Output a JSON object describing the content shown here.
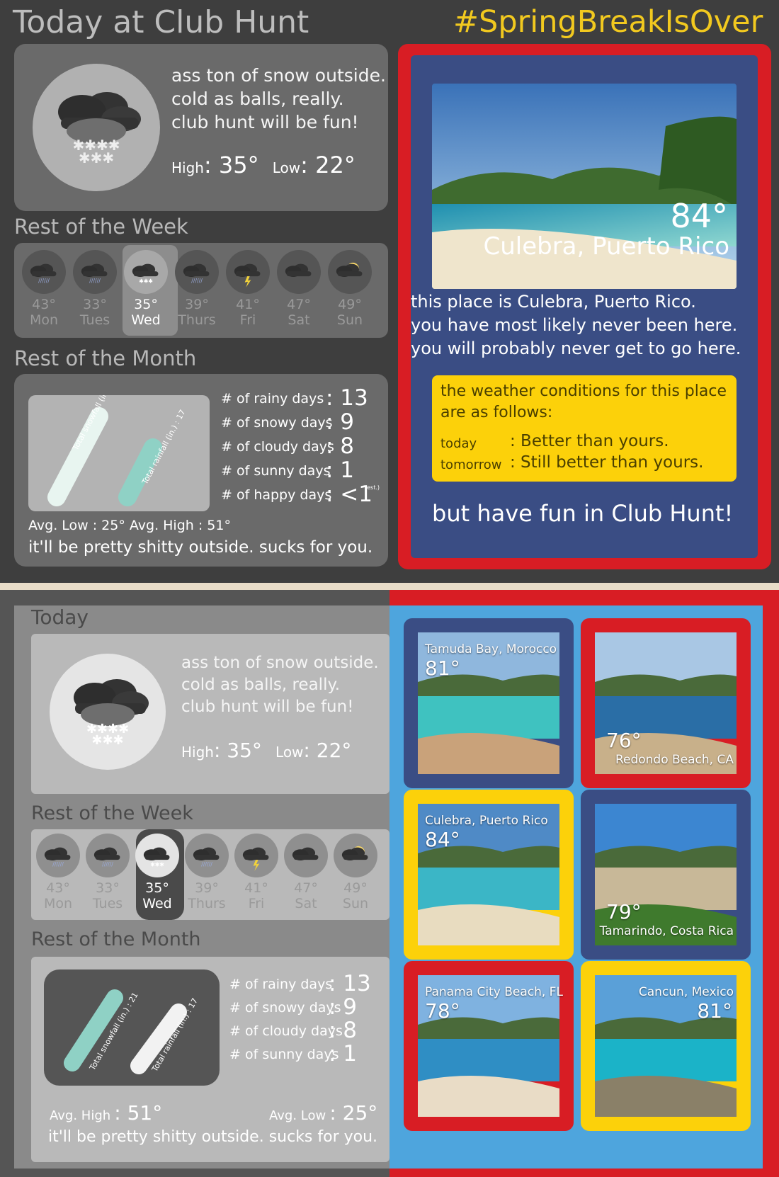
{
  "top": {
    "title": "Today at Club Hunt",
    "hashtag": "#SpringBreakIsOver",
    "today": {
      "lines": [
        "ass ton of snow outside.",
        "cold as balls, really.",
        "club hunt will be fun!"
      ],
      "high_label": "High",
      "high_value": ": 35°",
      "low_label": "Low",
      "low_value": ": 22°"
    },
    "week_heading": "Rest of the Week",
    "month_heading": "Rest of the Month",
    "month_stats": [
      {
        "label": "# of rainy days",
        "value": ": 13"
      },
      {
        "label": "# of snowy days",
        "value": ": 9"
      },
      {
        "label": "# of cloudy days",
        "value": ": 8"
      },
      {
        "label": "# of sunny days",
        "value": ": 1"
      },
      {
        "label": "# of happy days",
        "value": ": <1",
        "note": "(est.)"
      }
    ],
    "snowfall_label": "Total snowfall (in.) : 21",
    "rainfall_label": "Total rainfall (in.) : 17",
    "avg_line": "Avg. Low : 25°  Avg. High : 51°",
    "summary": "it'll be pretty shitty outside. sucks for you.",
    "feature": {
      "temp": "84°",
      "place": "Culebra, Puerto Rico",
      "desc": [
        "this place is Culebra, Puerto Rico.",
        "you have most likely never been here.",
        "you will probably never get to go here."
      ],
      "box_intro": [
        "the weather conditions for this place",
        "are as follows:"
      ],
      "today_label": "today",
      "today_value": ": Better than yours.",
      "tomorrow_label": "tomorrow",
      "tomorrow_value": ": Still better than yours.",
      "footer": "but have fun in Club Hunt!"
    }
  },
  "week": [
    {
      "temp": "43°",
      "day": "Mon",
      "icon": "cloud-rain-icon"
    },
    {
      "temp": "33°",
      "day": "Tues",
      "icon": "cloud-rain-icon"
    },
    {
      "temp": "35°",
      "day": "Wed",
      "icon": "cloud-snow-icon",
      "active": true
    },
    {
      "temp": "39°",
      "day": "Thurs",
      "icon": "cloud-rain-icon"
    },
    {
      "temp": "41°",
      "day": "Fri",
      "icon": "cloud-lightning-icon"
    },
    {
      "temp": "47°",
      "day": "Sat",
      "icon": "cloud-icon"
    },
    {
      "temp": "49°",
      "day": "Sun",
      "icon": "partly-sunny-icon"
    }
  ],
  "bottom": {
    "today_heading": "Today",
    "today": {
      "lines": [
        "ass ton of snow outside.",
        "cold as balls, really.",
        "club hunt will be fun!"
      ],
      "high_label": "High",
      "high_value": ": 35°",
      "low_label": "Low",
      "low_value": ": 22°"
    },
    "week_heading": "Rest of the Week",
    "month_heading": "Rest of the Month",
    "month_stats": [
      {
        "label": "# of rainy days",
        "value": ": 13"
      },
      {
        "label": "# of snowy days",
        "value": ": 9"
      },
      {
        "label": "# of cloudy days",
        "value": ": 8"
      },
      {
        "label": "# of sunny days",
        "value": ": 1"
      }
    ],
    "snowfall_label": "Total snowfall (in.) : 21",
    "rainfall_label": "Total rainfall (in.) : 17",
    "avg_high_label": "Avg. High",
    "avg_high_value": ": 51°",
    "avg_low_label": "Avg. Low",
    "avg_low_value": ": 25°",
    "summary": "it'll be pretty shitty outside. sucks for you.",
    "destinations": [
      {
        "city": "Tamuda Bay, Morocco",
        "temp": "81°"
      },
      {
        "city": "Redondo Beach, CA",
        "temp": "76°"
      },
      {
        "city": "Culebra, Puerto Rico",
        "temp": "84°"
      },
      {
        "city": "Tamarindo, Costa Rica",
        "temp": "79°"
      },
      {
        "city": "Panama City Beach, FL",
        "temp": "78°"
      },
      {
        "city": "Cancun, Mexico",
        "temp": "81°"
      }
    ]
  },
  "colors": {
    "accent_red": "#d81d24",
    "navy": "#3a4d84",
    "yellow": "#fcd10a",
    "sky_blue": "#4ea5dd",
    "mint": "#8fd1c5"
  }
}
